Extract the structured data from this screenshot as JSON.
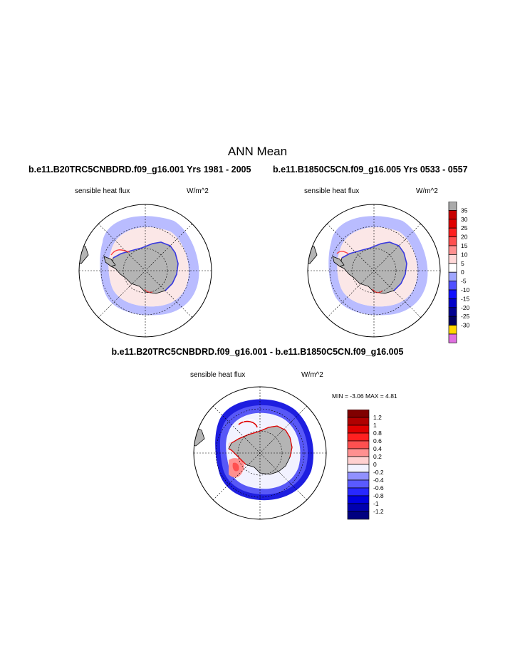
{
  "page_title": "ANN Mean",
  "panels": [
    {
      "case": "b.e11.B20TRC5CNBDRD.f09_g16.001  Yrs 1981 - 2005",
      "variable": "sensible heat flux",
      "units": "W/m^2"
    },
    {
      "case": "b.e11.B1850C5CN.f09_g16.005  Yrs 0533 - 0557",
      "variable": "sensible heat flux",
      "units": "W/m^2"
    }
  ],
  "difference": {
    "title": "b.e11.B20TRC5CNBDRD.f09_g16.001 - b.e11.B1850C5CN.f09_g16.005",
    "variable": "sensible heat flux",
    "units": "W/m^2",
    "min_max": "MIN =  -3.06 MAX =   4.81"
  },
  "colorbar_top": {
    "labels": [
      "35",
      "30",
      "25",
      "20",
      "15",
      "10",
      "5",
      "0",
      "-5",
      "-10",
      "-15",
      "-20",
      "-25",
      "-30"
    ],
    "colors": [
      "#aaaaaa",
      "#c80000",
      "#e00000",
      "#ff2020",
      "#ff5050",
      "#ff9090",
      "#ffd8d8",
      "#ffffff",
      "#9fa6ff",
      "#5050ff",
      "#1010ff",
      "#0000c8",
      "#000090",
      "#000060",
      "#ffd700",
      "#e070e0"
    ]
  },
  "colorbar_diff": {
    "labels": [
      "1.2",
      "1",
      "0.8",
      "0.6",
      "0.4",
      "0.2",
      "0",
      "-0.2",
      "-0.4",
      "-0.6",
      "-0.8",
      "-1",
      "-1.2"
    ],
    "colors": [
      "#800000",
      "#b00000",
      "#e00000",
      "#ff2020",
      "#ff5050",
      "#ff9090",
      "#ffd0d0",
      "#f2f2ff",
      "#9090ff",
      "#5a5aff",
      "#2828ff",
      "#0000e0",
      "#0000b0",
      "#000080"
    ]
  },
  "colors": {
    "land": "#b4b4b4",
    "ocean_light_blue": "#b9bcff",
    "ocean_pink": "#fbe7e7",
    "ice_edge_blue": "#3a3adf",
    "diff_blue_dark": "#1e1ee0",
    "diff_blue_mid": "#6c6cff"
  }
}
